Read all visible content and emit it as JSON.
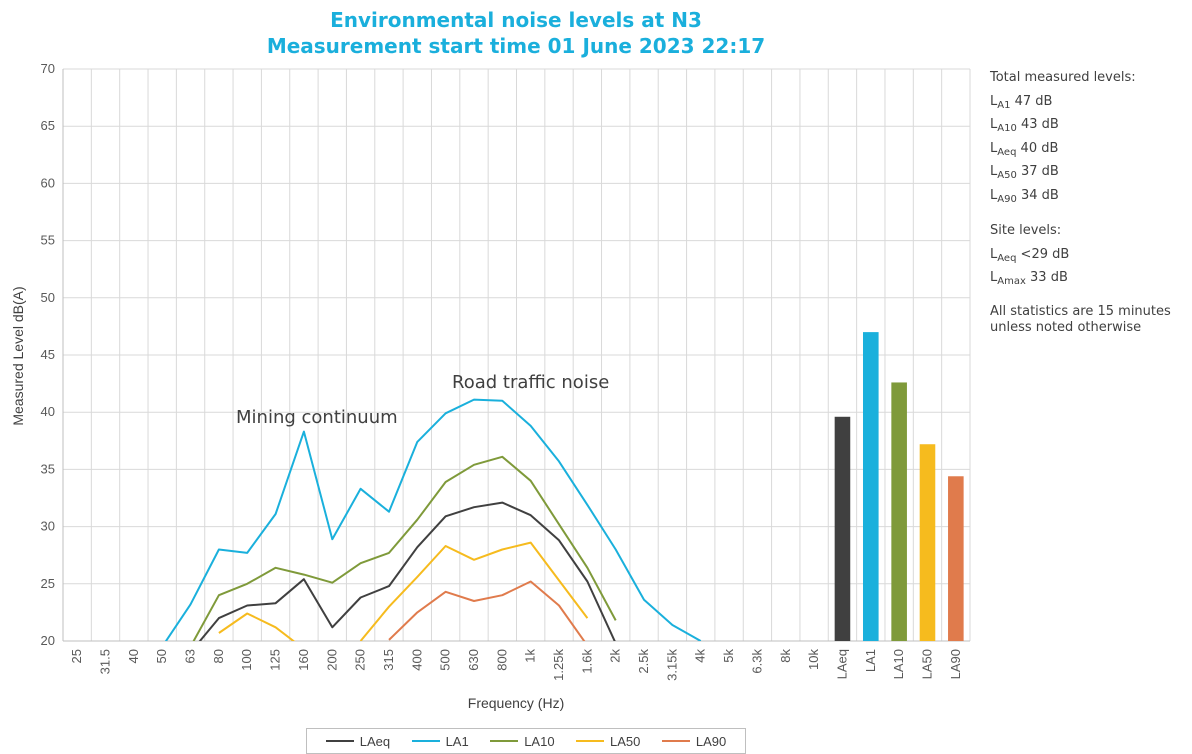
{
  "chart_data": {
    "type": "line",
    "title_lines": [
      "Environmental noise levels at N3",
      "Measurement start time 01 June 2023 22:17"
    ],
    "xlabel": "Frequency (Hz)",
    "ylabel": "Measured Level dB(A)",
    "ylim": [
      20,
      70
    ],
    "y_ticks": [
      20,
      25,
      30,
      35,
      40,
      45,
      50,
      55,
      60,
      65,
      70
    ],
    "grid": true,
    "categories": [
      "25",
      "31.5",
      "40",
      "50",
      "63",
      "80",
      "100",
      "125",
      "160",
      "200",
      "250",
      "315",
      "400",
      "500",
      "630",
      "800",
      "1k",
      "1.25k",
      "1.6k",
      "2k",
      "2.5k",
      "3.15k",
      "4k",
      "5k",
      "6.3k",
      "8k",
      "10k"
    ],
    "series": [
      {
        "name": "LAeq",
        "color": "#404040",
        "values": [
          null,
          null,
          null,
          null,
          19,
          22,
          23.1,
          23.3,
          25.4,
          21.2,
          23.8,
          24.8,
          28.2,
          30.9,
          31.7,
          32.1,
          31,
          28.8,
          25.2,
          19.8,
          null,
          null,
          null,
          null,
          null,
          null,
          null
        ]
      },
      {
        "name": "LA1",
        "color": "#1ab0dc",
        "values": [
          null,
          null,
          null,
          19.5,
          23.2,
          28,
          27.7,
          31.1,
          38.3,
          28.9,
          33.3,
          31.3,
          37.4,
          39.9,
          41.1,
          41,
          38.8,
          35.7,
          31.9,
          28,
          23.6,
          21.4,
          20,
          null,
          null,
          null,
          null
        ]
      },
      {
        "name": "LA10",
        "color": "#7f9a3a",
        "values": [
          null,
          null,
          null,
          null,
          19.5,
          24,
          25,
          26.4,
          25.8,
          25.1,
          26.8,
          27.7,
          30.6,
          33.9,
          35.4,
          36.1,
          34,
          30.2,
          26.4,
          21.8,
          null,
          null,
          null,
          null,
          null,
          null,
          null
        ]
      },
      {
        "name": "LA50",
        "color": "#f6bb1e",
        "values": [
          null,
          null,
          null,
          null,
          null,
          20.7,
          22.4,
          21.2,
          19.3,
          null,
          20,
          23,
          25.6,
          28.3,
          27.1,
          28,
          28.6,
          25.3,
          22,
          null,
          null,
          null,
          null,
          null,
          null,
          null,
          null
        ]
      },
      {
        "name": "LA90",
        "color": "#e07b4c",
        "values": [
          null,
          null,
          null,
          null,
          null,
          null,
          null,
          null,
          null,
          null,
          null,
          20.1,
          22.5,
          24.3,
          23.5,
          24,
          25.2,
          23.1,
          19.6,
          null,
          null,
          null,
          null,
          null,
          null,
          null,
          null
        ]
      }
    ],
    "bars": {
      "categories": [
        "LAeq",
        "LA1",
        "LA10",
        "LA50",
        "LA90"
      ],
      "values": [
        39.6,
        47,
        42.6,
        37.2,
        34.4
      ],
      "colors": [
        "#404040",
        "#1ab0dc",
        "#7f9a3a",
        "#f6bb1e",
        "#e07b4c"
      ]
    },
    "annotations": [
      "Mining continuum",
      "Road traffic noise"
    ],
    "legend": [
      "LAeq",
      "LA1",
      "LA10",
      "LA50",
      "LA90"
    ],
    "legend_position": "bottom"
  },
  "notes": {
    "total_heading": "Total measured levels:",
    "total": [
      {
        "sym": "L",
        "sub": "A1",
        "val": "47 dB"
      },
      {
        "sym": "L",
        "sub": "A10",
        "val": "43 dB"
      },
      {
        "sym": "L",
        "sub": "Aeq",
        "val": "40 dB"
      },
      {
        "sym": "L",
        "sub": "A50",
        "val": "37 dB"
      },
      {
        "sym": "L",
        "sub": "A90",
        "val": "34 dB"
      }
    ],
    "site_heading": "Site levels:",
    "site": [
      {
        "sym": "L",
        "sub": "Aeq",
        "val": "<29 dB"
      },
      {
        "sym": "L",
        "sub": "Amax",
        "val": "33 dB"
      }
    ],
    "footnote": "All statistics are 15 minutes unless noted otherwise"
  },
  "colors": {
    "title": "#1aafdc",
    "grid": "#d9d9d9",
    "axis": "#bfbfbf"
  }
}
